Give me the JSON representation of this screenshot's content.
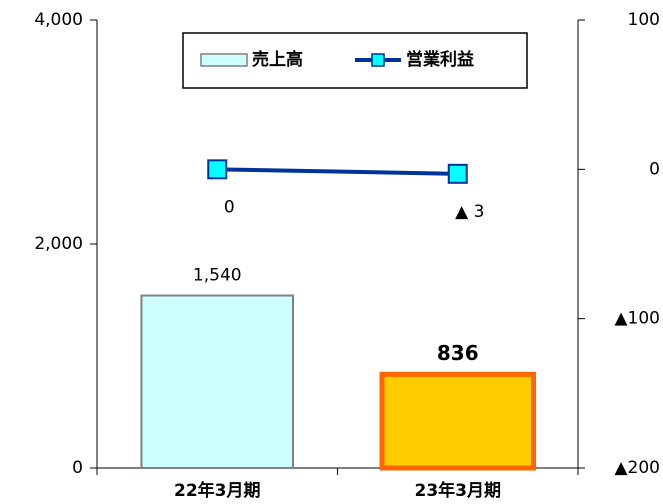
{
  "chart_data": {
    "type": "bar",
    "categories": [
      "22年3月期",
      "23年3月期"
    ],
    "ylim": [
      0,
      4000
    ],
    "yticks": [
      0,
      {
        "value": 2000,
        "label": "2,000"
      },
      {
        "value": 4000,
        "label": "4,000"
      }
    ],
    "y2lim": [
      -200,
      100
    ],
    "y2ticks": [
      {
        "value": -200,
        "label": "▲200"
      },
      {
        "value": -100,
        "label": "▲100"
      },
      0,
      100
    ],
    "grid": false,
    "legend": "top",
    "series": [
      {
        "name": "売上高",
        "type": "bar",
        "values": [
          1540,
          836
        ],
        "value_labels": [
          "1,540",
          "836"
        ],
        "colors": [
          "#ccffff",
          "#ffcc00"
        ],
        "edge_colors": [
          "#808080",
          "#ff6600"
        ],
        "edge_widths": [
          2,
          5
        ],
        "label_bold": [
          false,
          true
        ]
      },
      {
        "name": "営業利益",
        "type": "line",
        "axis": "y2",
        "values": [
          0,
          -3
        ],
        "value_labels": [
          "0",
          "▲ 3"
        ],
        "color": "#003399",
        "marker_color": "#00ffff"
      }
    ]
  }
}
